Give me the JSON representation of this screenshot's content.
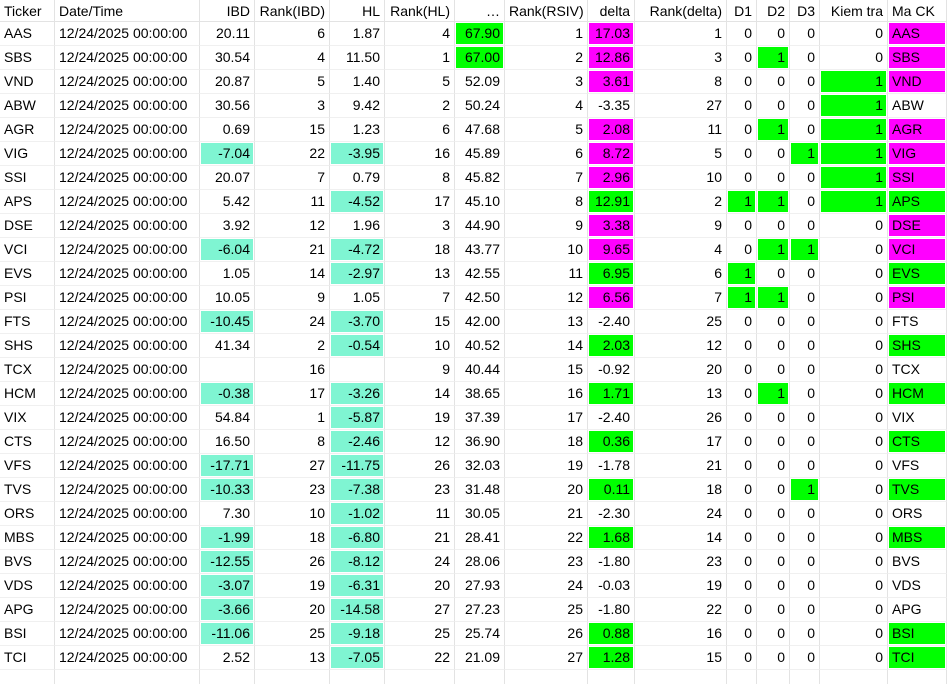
{
  "table": {
    "header": [
      "Ticker",
      "Date/Time",
      "IBD",
      "Rank(IBD)",
      "HL",
      "Rank(HL)",
      "…",
      "Rank(RSIV)",
      "delta",
      "Rank(delta)",
      "D1",
      "D2",
      "D3",
      "Kiem tra",
      "Ma CK"
    ],
    "rows": [
      {
        "cells": [
          "AAS",
          "12/24/2025 00:00:00",
          "20.11",
          "6",
          "1.87",
          "4",
          "67.90",
          "1",
          "17.03",
          "1",
          "0",
          "0",
          "0",
          "0",
          "AAS"
        ],
        "fills": {
          "6": "#00ff00",
          "8": "#ff00ff",
          "14": "#ff00ff"
        }
      },
      {
        "cells": [
          "SBS",
          "12/24/2025 00:00:00",
          "30.54",
          "4",
          "11.50",
          "1",
          "67.00",
          "2",
          "12.86",
          "3",
          "0",
          "1",
          "0",
          "0",
          "SBS"
        ],
        "fills": {
          "6": "#00ff00",
          "8": "#ff00ff",
          "11": "#00ff00",
          "14": "#ff00ff"
        }
      },
      {
        "cells": [
          "VND",
          "12/24/2025 00:00:00",
          "20.87",
          "5",
          "1.40",
          "5",
          "52.09",
          "3",
          "3.61",
          "8",
          "0",
          "0",
          "0",
          "1",
          "VND"
        ],
        "fills": {
          "8": "#ff00ff",
          "13": "#00ff00",
          "14": "#ff00ff"
        }
      },
      {
        "cells": [
          "ABW",
          "12/24/2025 00:00:00",
          "30.56",
          "3",
          "9.42",
          "2",
          "50.24",
          "4",
          "-3.35",
          "27",
          "0",
          "0",
          "0",
          "1",
          "ABW"
        ],
        "fills": {
          "13": "#00ff00"
        }
      },
      {
        "cells": [
          "AGR",
          "12/24/2025 00:00:00",
          "0.69",
          "15",
          "1.23",
          "6",
          "47.68",
          "5",
          "2.08",
          "11",
          "0",
          "1",
          "0",
          "1",
          "AGR"
        ],
        "fills": {
          "8": "#ff00ff",
          "11": "#00ff00",
          "13": "#00ff00",
          "14": "#ff00ff"
        }
      },
      {
        "cells": [
          "VIG",
          "12/24/2025 00:00:00",
          "-7.04",
          "22",
          "-3.95",
          "16",
          "45.89",
          "6",
          "8.72",
          "5",
          "0",
          "0",
          "1",
          "1",
          "VIG"
        ],
        "fills": {
          "2": "#7ff5d2",
          "4": "#7ff5d2",
          "8": "#ff00ff",
          "12": "#00ff00",
          "13": "#00ff00",
          "14": "#ff00ff"
        }
      },
      {
        "cells": [
          "SSI",
          "12/24/2025 00:00:00",
          "20.07",
          "7",
          "0.79",
          "8",
          "45.82",
          "7",
          "2.96",
          "10",
          "0",
          "0",
          "0",
          "1",
          "SSI"
        ],
        "fills": {
          "8": "#ff00ff",
          "13": "#00ff00",
          "14": "#ff00ff"
        }
      },
      {
        "cells": [
          "APS",
          "12/24/2025 00:00:00",
          "5.42",
          "11",
          "-4.52",
          "17",
          "45.10",
          "8",
          "12.91",
          "2",
          "1",
          "1",
          "0",
          "1",
          "APS"
        ],
        "fills": {
          "4": "#7ff5d2",
          "8": "#00ff00",
          "10": "#00ff00",
          "11": "#00ff00",
          "13": "#00ff00",
          "14": "#00ff00"
        }
      },
      {
        "cells": [
          "DSE",
          "12/24/2025 00:00:00",
          "3.92",
          "12",
          "1.96",
          "3",
          "44.90",
          "9",
          "3.38",
          "9",
          "0",
          "0",
          "0",
          "0",
          "DSE"
        ],
        "fills": {
          "8": "#ff00ff",
          "14": "#ff00ff"
        }
      },
      {
        "cells": [
          "VCI",
          "12/24/2025 00:00:00",
          "-6.04",
          "21",
          "-4.72",
          "18",
          "43.77",
          "10",
          "9.65",
          "4",
          "0",
          "1",
          "1",
          "0",
          "VCI"
        ],
        "fills": {
          "2": "#7ff5d2",
          "4": "#7ff5d2",
          "8": "#ff00ff",
          "11": "#00ff00",
          "12": "#00ff00",
          "14": "#ff00ff"
        }
      },
      {
        "cells": [
          "EVS",
          "12/24/2025 00:00:00",
          "1.05",
          "14",
          "-2.97",
          "13",
          "42.55",
          "11",
          "6.95",
          "6",
          "1",
          "0",
          "0",
          "0",
          "EVS"
        ],
        "fills": {
          "4": "#7ff5d2",
          "8": "#00ff00",
          "10": "#00ff00",
          "14": "#00ff00"
        }
      },
      {
        "cells": [
          "PSI",
          "12/24/2025 00:00:00",
          "10.05",
          "9",
          "1.05",
          "7",
          "42.50",
          "12",
          "6.56",
          "7",
          "1",
          "1",
          "0",
          "0",
          "PSI"
        ],
        "fills": {
          "8": "#ff00ff",
          "10": "#00ff00",
          "11": "#00ff00",
          "14": "#ff00ff"
        }
      },
      {
        "cells": [
          "FTS",
          "12/24/2025 00:00:00",
          "-10.45",
          "24",
          "-3.70",
          "15",
          "42.00",
          "13",
          "-2.40",
          "25",
          "0",
          "0",
          "0",
          "0",
          "FTS"
        ],
        "fills": {
          "2": "#7ff5d2",
          "4": "#7ff5d2"
        }
      },
      {
        "cells": [
          "SHS",
          "12/24/2025 00:00:00",
          "41.34",
          "2",
          "-0.54",
          "10",
          "40.52",
          "14",
          "2.03",
          "12",
          "0",
          "0",
          "0",
          "0",
          "SHS"
        ],
        "fills": {
          "4": "#7ff5d2",
          "8": "#00ff00",
          "14": "#00ff00"
        }
      },
      {
        "cells": [
          "TCX",
          "12/24/2025 00:00:00",
          null,
          "16",
          null,
          "9",
          "40.44",
          "15",
          "-0.92",
          "20",
          "0",
          "0",
          "0",
          "0",
          "TCX"
        ],
        "fills": {}
      },
      {
        "cells": [
          "HCM",
          "12/24/2025 00:00:00",
          "-0.38",
          "17",
          "-3.26",
          "14",
          "38.65",
          "16",
          "1.71",
          "13",
          "0",
          "1",
          "0",
          "0",
          "HCM"
        ],
        "fills": {
          "2": "#7ff5d2",
          "4": "#7ff5d2",
          "8": "#00ff00",
          "11": "#00ff00",
          "14": "#00ff00"
        }
      },
      {
        "cells": [
          "VIX",
          "12/24/2025 00:00:00",
          "54.84",
          "1",
          "-5.87",
          "19",
          "37.39",
          "17",
          "-2.40",
          "26",
          "0",
          "0",
          "0",
          "0",
          "VIX"
        ],
        "fills": {
          "4": "#7ff5d2"
        }
      },
      {
        "cells": [
          "CTS",
          "12/24/2025 00:00:00",
          "16.50",
          "8",
          "-2.46",
          "12",
          "36.90",
          "18",
          "0.36",
          "17",
          "0",
          "0",
          "0",
          "0",
          "CTS"
        ],
        "fills": {
          "4": "#7ff5d2",
          "8": "#00ff00",
          "14": "#00ff00"
        }
      },
      {
        "cells": [
          "VFS",
          "12/24/2025 00:00:00",
          "-17.71",
          "27",
          "-11.75",
          "26",
          "32.03",
          "19",
          "-1.78",
          "21",
          "0",
          "0",
          "0",
          "0",
          "VFS"
        ],
        "fills": {
          "2": "#7ff5d2",
          "4": "#7ff5d2"
        }
      },
      {
        "cells": [
          "TVS",
          "12/24/2025 00:00:00",
          "-10.33",
          "23",
          "-7.38",
          "23",
          "31.48",
          "20",
          "0.11",
          "18",
          "0",
          "0",
          "1",
          "0",
          "TVS"
        ],
        "fills": {
          "2": "#7ff5d2",
          "4": "#7ff5d2",
          "8": "#00ff00",
          "12": "#00ff00",
          "14": "#00ff00"
        }
      },
      {
        "cells": [
          "ORS",
          "12/24/2025 00:00:00",
          "7.30",
          "10",
          "-1.02",
          "11",
          "30.05",
          "21",
          "-2.30",
          "24",
          "0",
          "0",
          "0",
          "0",
          "ORS"
        ],
        "fills": {
          "4": "#7ff5d2"
        }
      },
      {
        "cells": [
          "MBS",
          "12/24/2025 00:00:00",
          "-1.99",
          "18",
          "-6.80",
          "21",
          "28.41",
          "22",
          "1.68",
          "14",
          "0",
          "0",
          "0",
          "0",
          "MBS"
        ],
        "fills": {
          "2": "#7ff5d2",
          "4": "#7ff5d2",
          "8": "#00ff00",
          "14": "#00ff00"
        }
      },
      {
        "cells": [
          "BVS",
          "12/24/2025 00:00:00",
          "-12.55",
          "26",
          "-8.12",
          "24",
          "28.06",
          "23",
          "-1.80",
          "23",
          "0",
          "0",
          "0",
          "0",
          "BVS"
        ],
        "fills": {
          "2": "#7ff5d2",
          "4": "#7ff5d2"
        }
      },
      {
        "cells": [
          "VDS",
          "12/24/2025 00:00:00",
          "-3.07",
          "19",
          "-6.31",
          "20",
          "27.93",
          "24",
          "-0.03",
          "19",
          "0",
          "0",
          "0",
          "0",
          "VDS"
        ],
        "fills": {
          "2": "#7ff5d2",
          "4": "#7ff5d2"
        }
      },
      {
        "cells": [
          "APG",
          "12/24/2025 00:00:00",
          "-3.66",
          "20",
          "-14.58",
          "27",
          "27.23",
          "25",
          "-1.80",
          "22",
          "0",
          "0",
          "0",
          "0",
          "APG"
        ],
        "fills": {
          "2": "#7ff5d2",
          "4": "#7ff5d2"
        }
      },
      {
        "cells": [
          "BSI",
          "12/24/2025 00:00:00",
          "-11.06",
          "25",
          "-9.18",
          "25",
          "25.74",
          "26",
          "0.88",
          "16",
          "0",
          "0",
          "0",
          "0",
          "BSI"
        ],
        "fills": {
          "2": "#7ff5d2",
          "4": "#7ff5d2",
          "8": "#00ff00",
          "14": "#00ff00"
        }
      },
      {
        "cells": [
          "TCI",
          "12/24/2025 00:00:00",
          "2.52",
          "13",
          "-7.05",
          "22",
          "21.09",
          "27",
          "1.28",
          "15",
          "0",
          "0",
          "0",
          "0",
          "TCI"
        ],
        "fills": {
          "4": "#7ff5d2",
          "8": "#00ff00",
          "14": "#00ff00"
        }
      }
    ]
  }
}
